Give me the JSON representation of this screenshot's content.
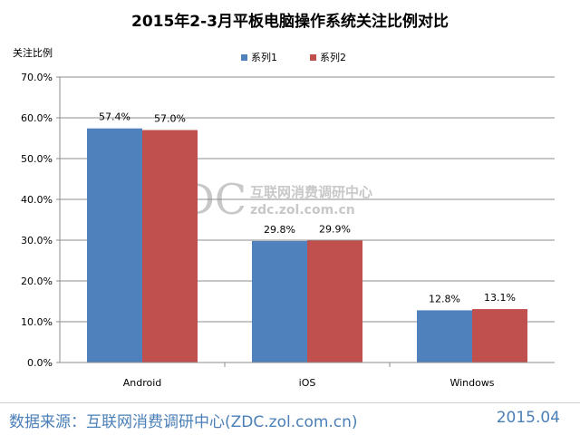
{
  "chart_data": {
    "type": "bar",
    "title": "2015年2-3月平板电脑操作系统关注比例对比",
    "ylabel": "关注比例",
    "xlabel": "",
    "categories": [
      "Android",
      "iOS",
      "Windows"
    ],
    "series": [
      {
        "name": "系列1",
        "color": "#4f81bd",
        "values": [
          57.4,
          29.8,
          12.8
        ],
        "labels": [
          "57.4%",
          "29.8%",
          "12.8%"
        ]
      },
      {
        "name": "系列2",
        "color": "#c0504d",
        "values": [
          57.0,
          29.9,
          13.1
        ],
        "labels": [
          "57.0%",
          "29.9%",
          "13.1%"
        ]
      }
    ],
    "ylim": [
      0,
      70
    ],
    "yticks": [
      "0.0%",
      "10.0%",
      "20.0%",
      "30.0%",
      "40.0%",
      "50.0%",
      "60.0%",
      "70.0%"
    ],
    "grid": true,
    "legend": "top-center"
  },
  "watermark": {
    "logo": "ZDC",
    "name": "互联网消费调研中心",
    "url": "zdc.zol.com.cn"
  },
  "footer": {
    "source": "数据来源：互联网消费调研中心(ZDC.zol.com.cn)",
    "date": "2015.04",
    "color": "#4a7fb8"
  }
}
